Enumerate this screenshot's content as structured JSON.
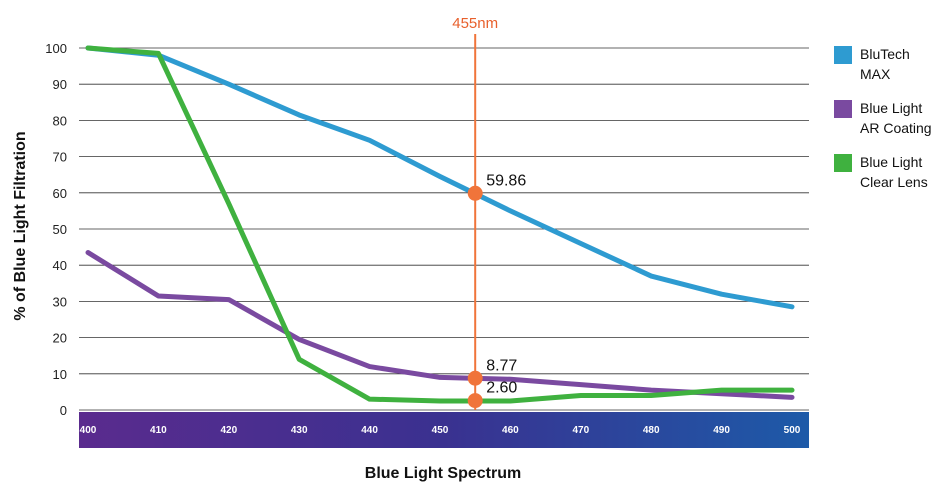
{
  "chart_data": {
    "type": "line",
    "xlabel": "Blue Light Spectrum",
    "ylabel": "% of Blue Light Filtration",
    "x": [
      400,
      410,
      420,
      430,
      440,
      450,
      460,
      470,
      480,
      490,
      500
    ],
    "xlim": [
      400,
      500
    ],
    "ylim": [
      0,
      100
    ],
    "yticks": [
      0,
      10,
      20,
      30,
      40,
      50,
      60,
      70,
      80,
      90,
      100
    ],
    "grid": "horizontal",
    "legend_position": "right",
    "series": [
      {
        "name": "BluTech MAX",
        "color": "#2e9bd1",
        "values": [
          100,
          98,
          90,
          81.5,
          74.5,
          64.5,
          55,
          46,
          37,
          32,
          28.5
        ]
      },
      {
        "name": "Blue Light AR Coating",
        "color": "#7a4aa0",
        "values": [
          43.5,
          31.5,
          30.5,
          19.5,
          12,
          9,
          8.5,
          7,
          5.5,
          4.5,
          3.5
        ]
      },
      {
        "name": "Blue Light Clear Lens",
        "color": "#3fb13f",
        "values": [
          100,
          98.5,
          57,
          14,
          3,
          2.5,
          2.5,
          4,
          4,
          5.5,
          5.5
        ]
      }
    ],
    "reference_line": {
      "x": 455,
      "label": "455nm",
      "color": "#f0743a"
    },
    "annotations": [
      {
        "x": 455,
        "y": 59.86,
        "label": "59.86"
      },
      {
        "x": 455,
        "y": 8.77,
        "label": "8.77"
      },
      {
        "x": 455,
        "y": 2.6,
        "label": "2.60"
      }
    ],
    "spectrum_band_colors": [
      "#5a2b8e",
      "#3a3190",
      "#1d5aa8"
    ]
  }
}
